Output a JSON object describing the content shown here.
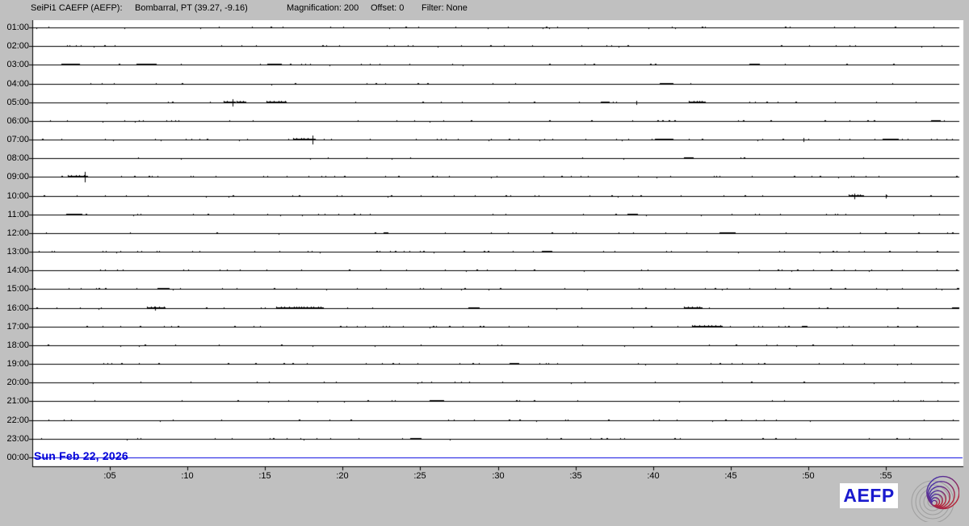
{
  "header": {
    "station": "SeiPi1 CAEFP (AEFP):",
    "location": "Bombarral, PT (39.27, -9.16)",
    "magnification": "Magnification: 200",
    "offset": "Offset: 0",
    "filter": "Filter: None"
  },
  "date_label": "Sun Feb 22, 2026",
  "axes": {
    "hours": [
      "01:00",
      "02:00",
      "03:00",
      "04:00",
      "05:00",
      "06:00",
      "07:00",
      "08:00",
      "09:00",
      "10:00",
      "11:00",
      "12:00",
      "13:00",
      "14:00",
      "15:00",
      "16:00",
      "17:00",
      "18:00",
      "19:00",
      "20:00",
      "21:00",
      "22:00",
      "23:00",
      "00:00"
    ],
    "minutes": [
      ":05",
      ":10",
      ":15",
      ":20",
      ":25",
      ":30",
      ":35",
      ":40",
      ":45",
      ":50",
      ":55"
    ]
  },
  "logo": {
    "text": "AEFP"
  },
  "colors": {
    "background": "#c0c0c0",
    "plot_bg": "#ffffff",
    "trace": "#000000",
    "active_trace": "#0000e0",
    "date_text": "#0000d8",
    "logo_text": "#1a1ace",
    "spiral_gray": "#a0a0a0",
    "spiral_blue": "#3333bb",
    "spiral_red": "#cc2222"
  },
  "chart": {
    "type": "helicorder",
    "minutes_per_row": 60,
    "rows": 24,
    "active_row": "00:00",
    "events": [
      {
        "row": "05:00",
        "type": "burst",
        "start": 12.35,
        "end": 12.75
      },
      {
        "row": "05:00",
        "type": "spike",
        "minute": 12.9,
        "height": 4
      },
      {
        "row": "05:00",
        "type": "burst",
        "start": 13.15,
        "end": 13.8
      },
      {
        "row": "05:00",
        "type": "burst",
        "start": 15.1,
        "end": 16.4
      },
      {
        "row": "05:00",
        "type": "spike",
        "minute": 38.9,
        "height": 2
      },
      {
        "row": "05:00",
        "type": "burst",
        "start": 42.3,
        "end": 43.4
      },
      {
        "row": "07:00",
        "type": "burst",
        "start": 16.8,
        "end": 17.9
      },
      {
        "row": "07:00",
        "type": "spike",
        "minute": 18.05,
        "height": 5
      },
      {
        "row": "07:00",
        "type": "spike",
        "minute": 49.7,
        "height": 2
      },
      {
        "row": "09:00",
        "type": "burst",
        "start": 2.3,
        "end": 3.4
      },
      {
        "row": "09:00",
        "type": "spike",
        "minute": 3.4,
        "height": 6
      },
      {
        "row": "10:00",
        "type": "burst",
        "start": 52.6,
        "end": 53.6
      },
      {
        "row": "10:00",
        "type": "spike",
        "minute": 53.0,
        "height": 3
      },
      {
        "row": "10:00",
        "type": "spike",
        "minute": 55.0,
        "height": 2
      },
      {
        "row": "16:00",
        "type": "burst",
        "start": 7.4,
        "end": 8.6
      },
      {
        "row": "16:00",
        "type": "spike",
        "minute": 7.9,
        "height": 2
      },
      {
        "row": "16:00",
        "type": "burst",
        "start": 15.7,
        "end": 18.8
      },
      {
        "row": "16:00",
        "type": "burst",
        "start": 42.0,
        "end": 43.2
      },
      {
        "row": "17:00",
        "type": "burst",
        "start": 42.5,
        "end": 44.5
      }
    ]
  }
}
